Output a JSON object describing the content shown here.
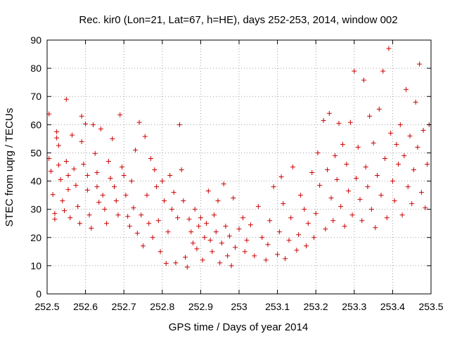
{
  "chart_data": {
    "type": "scatter",
    "title": "Rec. kir0 (Lon=21, Lat=67, h=HE), days 252-253, 2014, window 002",
    "xlabel": "GPS time / Days of year 2014",
    "ylabel": "STEC from uqrg / TECUs",
    "xlim": [
      252.5,
      253.5
    ],
    "ylim": [
      0,
      90
    ],
    "x_ticks": [
      252.5,
      252.6,
      252.7,
      252.8,
      252.9,
      253,
      253.1,
      253.2,
      253.3,
      253.4,
      253.5
    ],
    "x_tick_labels": [
      "252.5",
      "252.6",
      "252.7",
      "252.8",
      "252.9",
      "253",
      "253.1",
      "253.2",
      "253.3",
      "253.4",
      "253.5"
    ],
    "y_ticks": [
      0,
      10,
      20,
      30,
      40,
      50,
      60,
      70,
      80,
      90
    ],
    "y_tick_labels": [
      "0",
      "10",
      "20",
      "30",
      "40",
      "50",
      "60",
      "70",
      "80",
      "90"
    ],
    "grid": true,
    "marker": "+",
    "color": "#cc0000",
    "points": [
      [
        252.505,
        63.8
      ],
      [
        252.505,
        48.0
      ],
      [
        252.51,
        43.5
      ],
      [
        252.515,
        35.2
      ],
      [
        252.52,
        28.5
      ],
      [
        252.52,
        26.5
      ],
      [
        252.525,
        57.5
      ],
      [
        252.525,
        55.3
      ],
      [
        252.53,
        52.6
      ],
      [
        252.53,
        45.7
      ],
      [
        252.535,
        40.5
      ],
      [
        252.54,
        33.0
      ],
      [
        252.545,
        29.5
      ],
      [
        252.55,
        69.0
      ],
      [
        252.55,
        47.0
      ],
      [
        252.555,
        42.0
      ],
      [
        252.555,
        37.0
      ],
      [
        252.56,
        27.0
      ],
      [
        252.565,
        56.3
      ],
      [
        252.57,
        44.3
      ],
      [
        252.575,
        38.5
      ],
      [
        252.58,
        31.0
      ],
      [
        252.585,
        25.0
      ],
      [
        252.59,
        63.0
      ],
      [
        252.59,
        54.0
      ],
      [
        252.595,
        46.0
      ],
      [
        252.6,
        60.3
      ],
      [
        252.605,
        42.0
      ],
      [
        252.605,
        36.8
      ],
      [
        252.61,
        28.0
      ],
      [
        252.615,
        23.3
      ],
      [
        252.62,
        60.0
      ],
      [
        252.625,
        49.8
      ],
      [
        252.63,
        43.0
      ],
      [
        252.63,
        38.0
      ],
      [
        252.635,
        32.5
      ],
      [
        252.64,
        58.5
      ],
      [
        252.645,
        35.0
      ],
      [
        252.65,
        30.0
      ],
      [
        252.655,
        25.0
      ],
      [
        252.66,
        47.0
      ],
      [
        252.665,
        41.0
      ],
      [
        252.67,
        55.0
      ],
      [
        252.675,
        38.0
      ],
      [
        252.68,
        33.0
      ],
      [
        252.685,
        28.0
      ],
      [
        252.69,
        63.5
      ],
      [
        252.695,
        45.0
      ],
      [
        252.7,
        42.0
      ],
      [
        252.705,
        35.0
      ],
      [
        252.71,
        27.5
      ],
      [
        252.715,
        24.0
      ],
      [
        252.72,
        40.0
      ],
      [
        252.725,
        30.5
      ],
      [
        252.73,
        51.0
      ],
      [
        252.735,
        21.5
      ],
      [
        252.74,
        60.8
      ],
      [
        252.745,
        28.0
      ],
      [
        252.75,
        17.0
      ],
      [
        252.755,
        55.8
      ],
      [
        252.76,
        35.0
      ],
      [
        252.765,
        25.0
      ],
      [
        252.77,
        48.0
      ],
      [
        252.775,
        20.0
      ],
      [
        252.78,
        44.0
      ],
      [
        252.785,
        38.0
      ],
      [
        252.79,
        26.0
      ],
      [
        252.795,
        15.0
      ],
      [
        252.8,
        40.0
      ],
      [
        252.805,
        33.0
      ],
      [
        252.81,
        10.8
      ],
      [
        252.815,
        22.0
      ],
      [
        252.82,
        42.0
      ],
      [
        252.825,
        30.0
      ],
      [
        252.83,
        36.0
      ],
      [
        252.835,
        11.0
      ],
      [
        252.84,
        27.0
      ],
      [
        252.845,
        60.0
      ],
      [
        252.85,
        44.0
      ],
      [
        252.855,
        33.0
      ],
      [
        252.86,
        13.0
      ],
      [
        252.865,
        9.5
      ],
      [
        252.87,
        26.5
      ],
      [
        252.875,
        22.0
      ],
      [
        252.88,
        18.0
      ],
      [
        252.885,
        30.0
      ],
      [
        252.89,
        16.0
      ],
      [
        252.895,
        24.0
      ],
      [
        252.9,
        27.0
      ],
      [
        252.905,
        12.0
      ],
      [
        252.91,
        20.0
      ],
      [
        252.915,
        25.0
      ],
      [
        252.92,
        36.5
      ],
      [
        252.925,
        19.0
      ],
      [
        252.93,
        15.0
      ],
      [
        252.935,
        28.0
      ],
      [
        252.94,
        22.0
      ],
      [
        252.945,
        33.0
      ],
      [
        252.95,
        11.0
      ],
      [
        252.955,
        18.0
      ],
      [
        252.96,
        39.0
      ],
      [
        252.965,
        24.0
      ],
      [
        252.97,
        13.5
      ],
      [
        252.975,
        20.5
      ],
      [
        252.98,
        10.0
      ],
      [
        252.985,
        34.0
      ],
      [
        252.99,
        16.5
      ],
      [
        253.0,
        23.0
      ],
      [
        253.01,
        27.0
      ],
      [
        253.015,
        15.0
      ],
      [
        253.02,
        19.0
      ],
      [
        253.03,
        24.5
      ],
      [
        253.04,
        13.5
      ],
      [
        253.05,
        31.0
      ],
      [
        253.06,
        20.0
      ],
      [
        253.07,
        12.0
      ],
      [
        253.075,
        17.5
      ],
      [
        253.08,
        26.0
      ],
      [
        253.09,
        38.0
      ],
      [
        253.1,
        14.0
      ],
      [
        253.105,
        22.0
      ],
      [
        253.11,
        41.5
      ],
      [
        253.115,
        32.0
      ],
      [
        253.12,
        12.5
      ],
      [
        253.13,
        19.0
      ],
      [
        253.135,
        27.0
      ],
      [
        253.14,
        45.0
      ],
      [
        253.15,
        15.5
      ],
      [
        253.155,
        21.0
      ],
      [
        253.16,
        35.0
      ],
      [
        253.17,
        30.0
      ],
      [
        253.175,
        17.0
      ],
      [
        253.18,
        25.0
      ],
      [
        253.19,
        43.0
      ],
      [
        253.195,
        20.0
      ],
      [
        253.2,
        28.5
      ],
      [
        253.205,
        50.0
      ],
      [
        253.21,
        38.5
      ],
      [
        253.22,
        61.5
      ],
      [
        253.225,
        23.0
      ],
      [
        253.23,
        44.0
      ],
      [
        253.235,
        64.0
      ],
      [
        253.24,
        34.0
      ],
      [
        253.245,
        26.0
      ],
      [
        253.25,
        49.0
      ],
      [
        253.255,
        40.5
      ],
      [
        253.26,
        60.5
      ],
      [
        253.265,
        31.0
      ],
      [
        253.27,
        53.0
      ],
      [
        253.275,
        24.0
      ],
      [
        253.28,
        46.0
      ],
      [
        253.285,
        36.5
      ],
      [
        253.29,
        60.8
      ],
      [
        253.295,
        28.0
      ],
      [
        253.3,
        79.0
      ],
      [
        253.305,
        41.0
      ],
      [
        253.31,
        52.0
      ],
      [
        253.315,
        33.5
      ],
      [
        253.32,
        26.0
      ],
      [
        253.325,
        75.8
      ],
      [
        253.33,
        45.0
      ],
      [
        253.335,
        38.0
      ],
      [
        253.34,
        63.0
      ],
      [
        253.345,
        30.0
      ],
      [
        253.35,
        53.5
      ],
      [
        253.355,
        23.5
      ],
      [
        253.36,
        42.0
      ],
      [
        253.365,
        65.5
      ],
      [
        253.37,
        35.0
      ],
      [
        253.375,
        79.0
      ],
      [
        253.38,
        48.0
      ],
      [
        253.385,
        27.0
      ],
      [
        253.39,
        87.0
      ],
      [
        253.395,
        57.0
      ],
      [
        253.4,
        40.0
      ],
      [
        253.405,
        33.0
      ],
      [
        253.41,
        53.0
      ],
      [
        253.415,
        46.0
      ],
      [
        253.42,
        60.0
      ],
      [
        253.425,
        28.0
      ],
      [
        253.43,
        49.0
      ],
      [
        253.435,
        72.5
      ],
      [
        253.44,
        38.0
      ],
      [
        253.445,
        56.0
      ],
      [
        253.45,
        32.0
      ],
      [
        253.455,
        44.0
      ],
      [
        253.46,
        68.0
      ],
      [
        253.465,
        52.0
      ],
      [
        253.47,
        81.5
      ],
      [
        253.475,
        36.0
      ],
      [
        253.48,
        58.0
      ],
      [
        253.485,
        30.5
      ],
      [
        253.49,
        46.0
      ],
      [
        253.495,
        60.0
      ]
    ]
  }
}
